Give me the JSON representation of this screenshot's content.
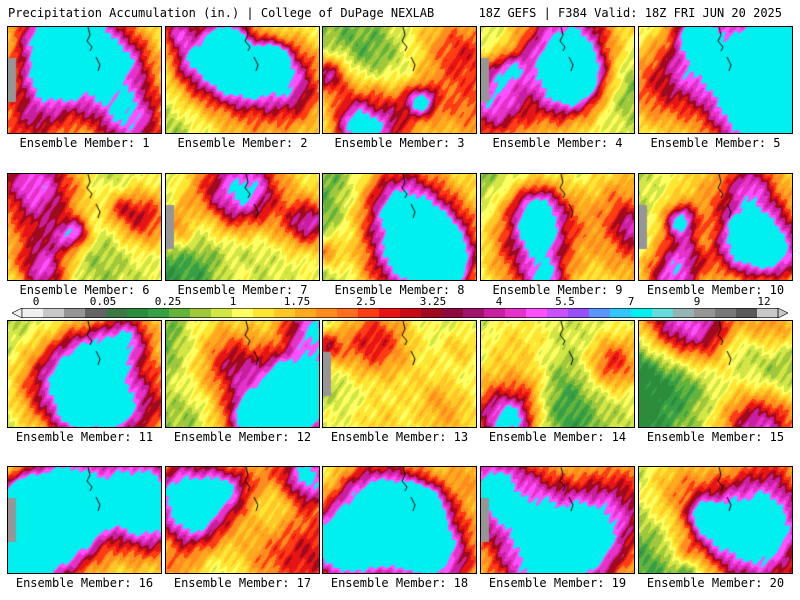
{
  "header": {
    "title_left": "Precipitation Accumulation (in.) | College of DuPage NEXLAB",
    "title_right": "18Z GEFS | F384 Valid: 18Z FRI JUN 20 2025"
  },
  "members": [
    {
      "label": "Ensemble Member: 1"
    },
    {
      "label": "Ensemble Member: 2"
    },
    {
      "label": "Ensemble Member: 3"
    },
    {
      "label": "Ensemble Member: 4"
    },
    {
      "label": "Ensemble Member: 5"
    },
    {
      "label": "Ensemble Member: 6"
    },
    {
      "label": "Ensemble Member: 7"
    },
    {
      "label": "Ensemble Member: 8"
    },
    {
      "label": "Ensemble Member: 9"
    },
    {
      "label": "Ensemble Member: 10"
    },
    {
      "label": "Ensemble Member: 11"
    },
    {
      "label": "Ensemble Member: 12"
    },
    {
      "label": "Ensemble Member: 13"
    },
    {
      "label": "Ensemble Member: 14"
    },
    {
      "label": "Ensemble Member: 15"
    },
    {
      "label": "Ensemble Member: 16"
    },
    {
      "label": "Ensemble Member: 17"
    },
    {
      "label": "Ensemble Member: 18"
    },
    {
      "label": "Ensemble Member: 19"
    },
    {
      "label": "Ensemble Member: 20"
    }
  ],
  "colorbar": {
    "labels": [
      "0",
      "0.05",
      "0.25",
      "1",
      "1.75",
      "2.5",
      "3.25",
      "4",
      "5.5",
      "7",
      "9",
      "12"
    ],
    "colors": [
      "#f0f0f0",
      "#c8c8c8",
      "#969696",
      "#646464",
      "#3c7846",
      "#2d8c3c",
      "#37a046",
      "#64b43c",
      "#a0c83c",
      "#d2e646",
      "#ffff64",
      "#ffe632",
      "#ffc828",
      "#ffaa1e",
      "#ff8c1e",
      "#ff6e1e",
      "#ff3c14",
      "#e61414",
      "#c80a14",
      "#a00a1e",
      "#8c0a3c",
      "#a0146e",
      "#c81ea0",
      "#e632c8",
      "#ff50ff",
      "#c850ff",
      "#9650ff",
      "#5a96ff",
      "#32c8ff",
      "#00f0f0",
      "#64dcdc",
      "#96b4b4",
      "#969696",
      "#787878",
      "#5a5a5a",
      "#c8c8c8"
    ]
  }
}
